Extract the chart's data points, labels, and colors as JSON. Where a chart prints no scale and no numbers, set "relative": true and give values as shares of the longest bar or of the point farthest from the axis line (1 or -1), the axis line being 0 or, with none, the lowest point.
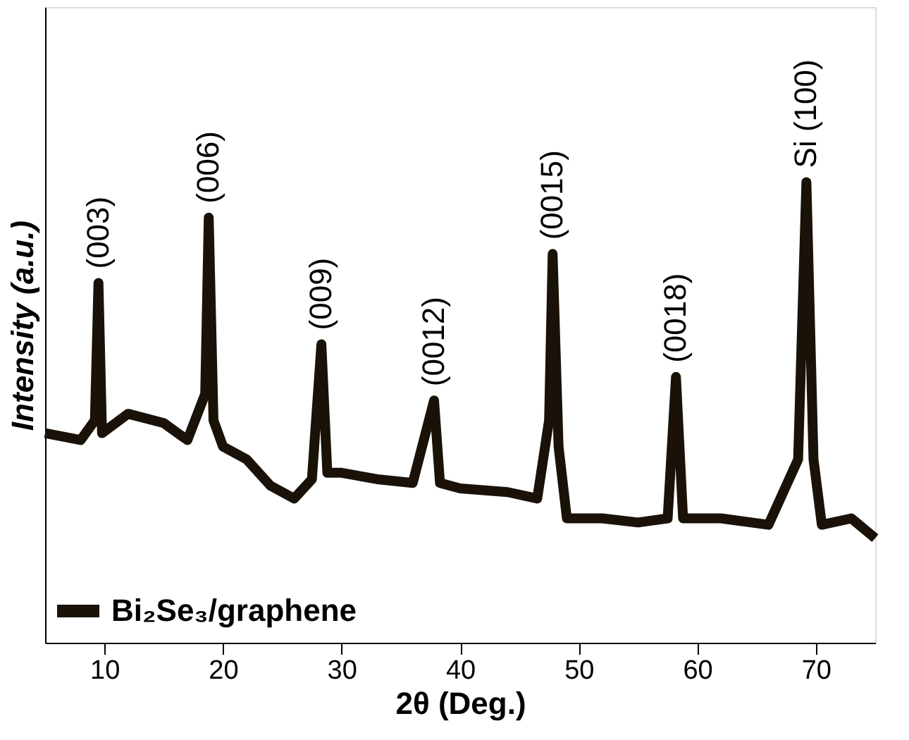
{
  "chart_data": {
    "type": "line",
    "relative": true,
    "xlabel": "2θ (Deg.)",
    "ylabel": "Intensity (a.u.)",
    "xlim": [
      5,
      75
    ],
    "xticks": [
      10,
      20,
      30,
      40,
      50,
      60,
      70
    ],
    "tick_labels": "x",
    "grid": false,
    "legend": "bottom left",
    "marker": "none",
    "line_style": "solid",
    "series": [
      {
        "name": "Bi₂Se₃/graphene",
        "color": "#1a1209",
        "x": [
          5,
          8,
          9.2,
          9.5,
          9.8,
          12,
          15,
          17,
          18.5,
          18.8,
          19.2,
          20,
          22,
          24,
          26,
          27.5,
          28.3,
          28.8,
          30,
          33,
          36,
          37.8,
          38.3,
          40,
          44,
          46.5,
          47.5,
          47.8,
          48.3,
          49,
          52,
          55,
          57.5,
          58.2,
          58.8,
          62,
          66,
          68.5,
          69.2,
          69.8,
          70.5,
          73,
          75
        ],
        "values": [
          0.455,
          0.44,
          0.483,
          0.781,
          0.455,
          0.497,
          0.477,
          0.44,
          0.54,
          0.923,
          0.483,
          0.426,
          0.398,
          0.341,
          0.313,
          0.355,
          0.648,
          0.369,
          0.369,
          0.355,
          0.347,
          0.526,
          0.347,
          0.335,
          0.327,
          0.313,
          0.483,
          0.844,
          0.426,
          0.27,
          0.27,
          0.261,
          0.27,
          0.577,
          0.27,
          0.27,
          0.256,
          0.398,
          1.0,
          0.398,
          0.256,
          0.27,
          0.227
        ]
      }
    ],
    "annotations": [
      {
        "text": "(003)",
        "x": 9.5,
        "y": 0.781
      },
      {
        "text": "(006)",
        "x": 18.8,
        "y": 0.923
      },
      {
        "text": "(009)",
        "x": 28.3,
        "y": 0.648
      },
      {
        "text": "(0012)",
        "x": 37.8,
        "y": 0.526
      },
      {
        "text": "(0015)",
        "x": 47.8,
        "y": 0.844
      },
      {
        "text": "(0018)",
        "x": 58.2,
        "y": 0.577
      },
      {
        "text": "Si (100)",
        "x": 69.2,
        "y": 1.0
      }
    ]
  }
}
